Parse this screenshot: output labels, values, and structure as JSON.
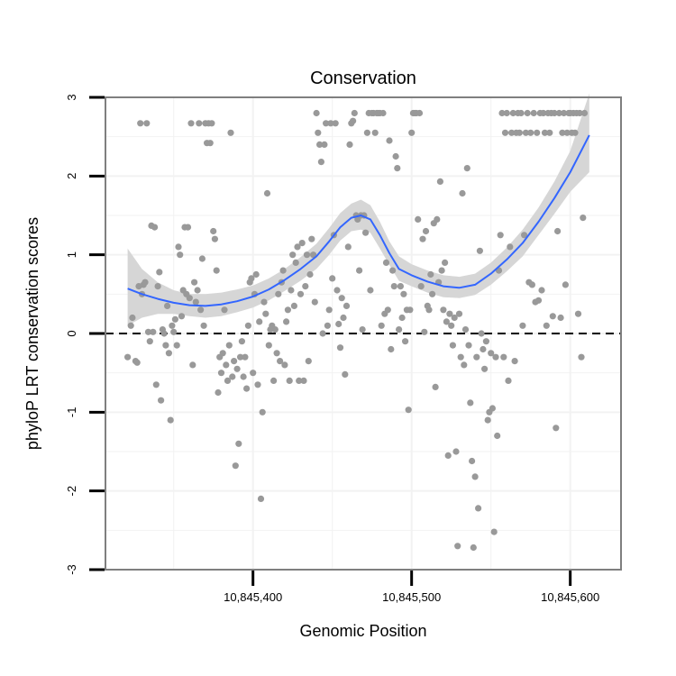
{
  "chart_data": {
    "type": "scatter",
    "title": "Conservation",
    "xlabel": "Genomic Position",
    "ylabel": "phyloP LRT conservation scores",
    "xlim": [
      10845307,
      10845632
    ],
    "ylim": [
      -3,
      3
    ],
    "x_ticks": [
      {
        "value": 10845400,
        "label": "10,845,400"
      },
      {
        "value": 10845500,
        "label": "10,845,500"
      },
      {
        "value": 10845600,
        "label": "10,845,600"
      }
    ],
    "y_ticks": [
      {
        "value": -3,
        "label": "-3"
      },
      {
        "value": -2,
        "label": "-2"
      },
      {
        "value": -1,
        "label": "-1"
      },
      {
        "value": 0,
        "label": "0"
      },
      {
        "value": 1,
        "label": "1"
      },
      {
        "value": 2,
        "label": "2"
      },
      {
        "value": 3,
        "label": "3"
      }
    ],
    "grid": true,
    "reference_line": {
      "y": 0,
      "style": "dashed",
      "color": "#000000"
    },
    "colors": {
      "points": "#999999",
      "smooth_line": "#3366ff",
      "confidence_band": "#d6d6d6",
      "panel_border": "#7f7f7f",
      "grid": "#f2f2f2"
    },
    "points": [
      [
        10845321,
        -0.3
      ],
      [
        10845323,
        0.1
      ],
      [
        10845324,
        0.2
      ],
      [
        10845326,
        -0.35
      ],
      [
        10845327,
        -0.37
      ],
      [
        10845328,
        0.6
      ],
      [
        10845329,
        2.67
      ],
      [
        10845330,
        0.5
      ],
      [
        10845331,
        0.62
      ],
      [
        10845332,
        0.65
      ],
      [
        10845333,
        2.67
      ],
      [
        10845334,
        0.02
      ],
      [
        10845335,
        -0.1
      ],
      [
        10845336,
        1.37
      ],
      [
        10845337,
        0.02
      ],
      [
        10845338,
        1.35
      ],
      [
        10845339,
        -0.65
      ],
      [
        10845340,
        0.6
      ],
      [
        10845341,
        0.78
      ],
      [
        10845342,
        -0.85
      ],
      [
        10845343,
        0.05
      ],
      [
        10845344,
        0.0
      ],
      [
        10845345,
        -0.15
      ],
      [
        10845346,
        0.35
      ],
      [
        10845347,
        -0.25
      ],
      [
        10845348,
        -1.1
      ],
      [
        10845349,
        0.1
      ],
      [
        10845350,
        0.02
      ],
      [
        10845351,
        0.18
      ],
      [
        10845352,
        -0.15
      ],
      [
        10845353,
        1.1
      ],
      [
        10845354,
        1.0
      ],
      [
        10845355,
        0.22
      ],
      [
        10845356,
        0.55
      ],
      [
        10845357,
        1.35
      ],
      [
        10845358,
        0.5
      ],
      [
        10845359,
        1.35
      ],
      [
        10845360,
        0.45
      ],
      [
        10845361,
        2.67
      ],
      [
        10845362,
        -0.4
      ],
      [
        10845363,
        0.65
      ],
      [
        10845364,
        0.4
      ],
      [
        10845365,
        0.55
      ],
      [
        10845366,
        2.67
      ],
      [
        10845367,
        0.3
      ],
      [
        10845368,
        0.95
      ],
      [
        10845369,
        0.1
      ],
      [
        10845370,
        2.67
      ],
      [
        10845371,
        2.42
      ],
      [
        10845372,
        2.67
      ],
      [
        10845373,
        2.42
      ],
      [
        10845374,
        2.67
      ],
      [
        10845375,
        1.3
      ],
      [
        10845376,
        1.2
      ],
      [
        10845377,
        0.8
      ],
      [
        10845378,
        -0.75
      ],
      [
        10845379,
        -0.3
      ],
      [
        10845380,
        -0.5
      ],
      [
        10845381,
        -0.25
      ],
      [
        10845382,
        0.3
      ],
      [
        10845383,
        -0.4
      ],
      [
        10845384,
        -0.6
      ],
      [
        10845385,
        -0.15
      ],
      [
        10845386,
        2.55
      ],
      [
        10845387,
        -0.55
      ],
      [
        10845388,
        -0.35
      ],
      [
        10845389,
        -1.68
      ],
      [
        10845390,
        -0.45
      ],
      [
        10845391,
        -1.4
      ],
      [
        10845392,
        -0.3
      ],
      [
        10845393,
        -0.1
      ],
      [
        10845394,
        -0.55
      ],
      [
        10845395,
        -0.3
      ],
      [
        10845396,
        -0.7
      ],
      [
        10845397,
        0.1
      ],
      [
        10845398,
        0.65
      ],
      [
        10845399,
        0.7
      ],
      [
        10845400,
        -0.5
      ],
      [
        10845401,
        0.5
      ],
      [
        10845402,
        0.75
      ],
      [
        10845403,
        -0.65
      ],
      [
        10845404,
        0.15
      ],
      [
        10845405,
        -2.1
      ],
      [
        10845406,
        -1.0
      ],
      [
        10845407,
        0.4
      ],
      [
        10845408,
        0.25
      ],
      [
        10845409,
        1.78
      ],
      [
        10845410,
        -0.15
      ],
      [
        10845411,
        0.05
      ],
      [
        10845412,
        0.1
      ],
      [
        10845413,
        -0.6
      ],
      [
        10845414,
        0.05
      ],
      [
        10845415,
        -0.25
      ],
      [
        10845416,
        0.5
      ],
      [
        10845417,
        -0.35
      ],
      [
        10845418,
        0.65
      ],
      [
        10845419,
        0.8
      ],
      [
        10845420,
        -0.4
      ],
      [
        10845421,
        0.15
      ],
      [
        10845422,
        0.3
      ],
      [
        10845423,
        -0.6
      ],
      [
        10845424,
        0.55
      ],
      [
        10845425,
        1.0
      ],
      [
        10845426,
        0.35
      ],
      [
        10845427,
        0.9
      ],
      [
        10845428,
        1.1
      ],
      [
        10845429,
        -0.6
      ],
      [
        10845430,
        0.5
      ],
      [
        10845431,
        1.15
      ],
      [
        10845432,
        -0.6
      ],
      [
        10845433,
        0.6
      ],
      [
        10845434,
        1.0
      ],
      [
        10845435,
        -0.35
      ],
      [
        10845436,
        0.75
      ],
      [
        10845437,
        1.2
      ],
      [
        10845438,
        1.0
      ],
      [
        10845439,
        0.4
      ],
      [
        10845440,
        2.8
      ],
      [
        10845441,
        2.55
      ],
      [
        10845442,
        2.4
      ],
      [
        10845443,
        2.18
      ],
      [
        10845444,
        0.0
      ],
      [
        10845445,
        2.4
      ],
      [
        10845446,
        2.67
      ],
      [
        10845447,
        0.1
      ],
      [
        10845448,
        0.3
      ],
      [
        10845449,
        2.67
      ],
      [
        10845450,
        0.7
      ],
      [
        10845451,
        1.25
      ],
      [
        10845452,
        2.67
      ],
      [
        10845453,
        0.55
      ],
      [
        10845454,
        0.12
      ],
      [
        10845455,
        -0.18
      ],
      [
        10845456,
        0.45
      ],
      [
        10845457,
        0.2
      ],
      [
        10845458,
        -0.52
      ],
      [
        10845459,
        0.35
      ],
      [
        10845460,
        1.1
      ],
      [
        10845461,
        2.4
      ],
      [
        10845462,
        2.67
      ],
      [
        10845463,
        2.7
      ],
      [
        10845464,
        2.8
      ],
      [
        10845465,
        1.5
      ],
      [
        10845466,
        1.45
      ],
      [
        10845467,
        0.8
      ],
      [
        10845468,
        1.5
      ],
      [
        10845469,
        0.05
      ],
      [
        10845470,
        1.5
      ],
      [
        10845471,
        1.28
      ],
      [
        10845472,
        2.55
      ],
      [
        10845473,
        2.8
      ],
      [
        10845474,
        0.55
      ],
      [
        10845475,
        2.8
      ],
      [
        10845476,
        2.8
      ],
      [
        10845477,
        2.55
      ],
      [
        10845478,
        2.8
      ],
      [
        10845479,
        2.8
      ],
      [
        10845480,
        2.8
      ],
      [
        10845481,
        0.1
      ],
      [
        10845482,
        2.8
      ],
      [
        10845483,
        0.25
      ],
      [
        10845484,
        0.9
      ],
      [
        10845485,
        0.3
      ],
      [
        10845486,
        2.45
      ],
      [
        10845487,
        -0.2
      ],
      [
        10845488,
        0.8
      ],
      [
        10845489,
        0.6
      ],
      [
        10845490,
        2.25
      ],
      [
        10845491,
        2.1
      ],
      [
        10845492,
        0.05
      ],
      [
        10845493,
        0.6
      ],
      [
        10845494,
        0.2
      ],
      [
        10845495,
        0.5
      ],
      [
        10845496,
        -0.1
      ],
      [
        10845497,
        0.3
      ],
      [
        10845498,
        -0.97
      ],
      [
        10845499,
        0.3
      ],
      [
        10845500,
        2.55
      ],
      [
        10845501,
        2.8
      ],
      [
        10845502,
        2.8
      ],
      [
        10845503,
        2.8
      ],
      [
        10845504,
        1.45
      ],
      [
        10845505,
        2.8
      ],
      [
        10845506,
        0.6
      ],
      [
        10845507,
        1.2
      ],
      [
        10845508,
        0.02
      ],
      [
        10845509,
        1.3
      ],
      [
        10845510,
        0.35
      ],
      [
        10845511,
        0.3
      ],
      [
        10845512,
        0.75
      ],
      [
        10845513,
        0.5
      ],
      [
        10845514,
        1.4
      ],
      [
        10845515,
        -0.68
      ],
      [
        10845516,
        1.45
      ],
      [
        10845517,
        0.65
      ],
      [
        10845518,
        1.93
      ],
      [
        10845519,
        0.8
      ],
      [
        10845520,
        0.3
      ],
      [
        10845521,
        0.9
      ],
      [
        10845522,
        0.15
      ],
      [
        10845523,
        -1.55
      ],
      [
        10845524,
        0.25
      ],
      [
        10845525,
        0.1
      ],
      [
        10845526,
        -0.15
      ],
      [
        10845527,
        0.2
      ],
      [
        10845528,
        -1.5
      ],
      [
        10845529,
        -2.7
      ],
      [
        10845530,
        0.25
      ],
      [
        10845531,
        -0.3
      ],
      [
        10845532,
        1.78
      ],
      [
        10845533,
        -0.4
      ],
      [
        10845534,
        0.05
      ],
      [
        10845535,
        2.1
      ],
      [
        10845536,
        -0.15
      ],
      [
        10845537,
        -0.88
      ],
      [
        10845538,
        -1.62
      ],
      [
        10845539,
        -2.72
      ],
      [
        10845540,
        -1.82
      ],
      [
        10845541,
        -0.3
      ],
      [
        10845542,
        -2.22
      ],
      [
        10845543,
        1.05
      ],
      [
        10845544,
        0.0
      ],
      [
        10845545,
        -0.2
      ],
      [
        10845546,
        -0.45
      ],
      [
        10845547,
        -0.1
      ],
      [
        10845548,
        -1.1
      ],
      [
        10845549,
        -1.0
      ],
      [
        10845550,
        -0.25
      ],
      [
        10845551,
        -0.95
      ],
      [
        10845552,
        -2.52
      ],
      [
        10845553,
        -0.3
      ],
      [
        10845554,
        -1.3
      ],
      [
        10845555,
        0.8
      ],
      [
        10845556,
        1.25
      ],
      [
        10845557,
        2.8
      ],
      [
        10845558,
        -0.3
      ],
      [
        10845559,
        2.55
      ],
      [
        10845560,
        2.8
      ],
      [
        10845561,
        -0.6
      ],
      [
        10845562,
        1.1
      ],
      [
        10845563,
        2.55
      ],
      [
        10845564,
        2.8
      ],
      [
        10845565,
        -0.35
      ],
      [
        10845566,
        2.55
      ],
      [
        10845567,
        2.8
      ],
      [
        10845568,
        2.55
      ],
      [
        10845569,
        2.8
      ],
      [
        10845570,
        0.1
      ],
      [
        10845571,
        1.25
      ],
      [
        10845572,
        2.55
      ],
      [
        10845573,
        2.8
      ],
      [
        10845574,
        0.65
      ],
      [
        10845575,
        2.55
      ],
      [
        10845576,
        0.62
      ],
      [
        10845577,
        2.8
      ],
      [
        10845578,
        0.4
      ],
      [
        10845579,
        2.55
      ],
      [
        10845580,
        0.42
      ],
      [
        10845581,
        2.8
      ],
      [
        10845582,
        0.55
      ],
      [
        10845583,
        2.8
      ],
      [
        10845584,
        2.55
      ],
      [
        10845585,
        0.1
      ],
      [
        10845586,
        2.8
      ],
      [
        10845587,
        2.55
      ],
      [
        10845588,
        2.8
      ],
      [
        10845589,
        0.22
      ],
      [
        10845590,
        2.8
      ],
      [
        10845591,
        -1.2
      ],
      [
        10845592,
        1.3
      ],
      [
        10845593,
        2.8
      ],
      [
        10845594,
        0.2
      ],
      [
        10845595,
        2.55
      ],
      [
        10845596,
        2.8
      ],
      [
        10845597,
        0.62
      ],
      [
        10845598,
        2.55
      ],
      [
        10845599,
        2.8
      ],
      [
        10845600,
        2.8
      ],
      [
        10845601,
        2.55
      ],
      [
        10845602,
        2.8
      ],
      [
        10845603,
        2.55
      ],
      [
        10845604,
        2.8
      ],
      [
        10845605,
        0.25
      ],
      [
        10845606,
        2.8
      ],
      [
        10845607,
        -0.3
      ],
      [
        10845608,
        1.47
      ],
      [
        10845609,
        2.8
      ]
    ],
    "smooth": {
      "x": [
        10845321,
        10845330,
        10845340,
        10845350,
        10845360,
        10845370,
        10845380,
        10845390,
        10845400,
        10845410,
        10845420,
        10845430,
        10845440,
        10845448,
        10845455,
        10845462,
        10845468,
        10845474,
        10845480,
        10845486,
        10845492,
        10845500,
        10845510,
        10845520,
        10845530,
        10845540,
        10845550,
        10845560,
        10845570,
        10845580,
        10845590,
        10845600,
        10845612
      ],
      "y": [
        0.57,
        0.5,
        0.44,
        0.39,
        0.36,
        0.35,
        0.37,
        0.41,
        0.47,
        0.56,
        0.68,
        0.82,
        0.98,
        1.17,
        1.35,
        1.47,
        1.5,
        1.45,
        1.25,
        1.02,
        0.82,
        0.74,
        0.66,
        0.6,
        0.58,
        0.62,
        0.76,
        0.94,
        1.15,
        1.42,
        1.72,
        2.05,
        2.52
      ],
      "lower": [
        0.1,
        0.2,
        0.25,
        0.25,
        0.22,
        0.2,
        0.22,
        0.27,
        0.33,
        0.42,
        0.54,
        0.67,
        0.82,
        1.0,
        1.18,
        1.3,
        1.32,
        1.28,
        1.08,
        0.87,
        0.67,
        0.6,
        0.52,
        0.46,
        0.45,
        0.49,
        0.62,
        0.79,
        0.98,
        1.25,
        1.52,
        1.8,
        2.05
      ],
      "upper": [
        1.08,
        0.82,
        0.65,
        0.55,
        0.5,
        0.5,
        0.52,
        0.56,
        0.61,
        0.7,
        0.82,
        0.97,
        1.14,
        1.34,
        1.53,
        1.65,
        1.7,
        1.63,
        1.42,
        1.17,
        0.98,
        0.88,
        0.8,
        0.74,
        0.72,
        0.76,
        0.9,
        1.09,
        1.32,
        1.6,
        1.93,
        2.32,
        3.05
      ]
    }
  }
}
